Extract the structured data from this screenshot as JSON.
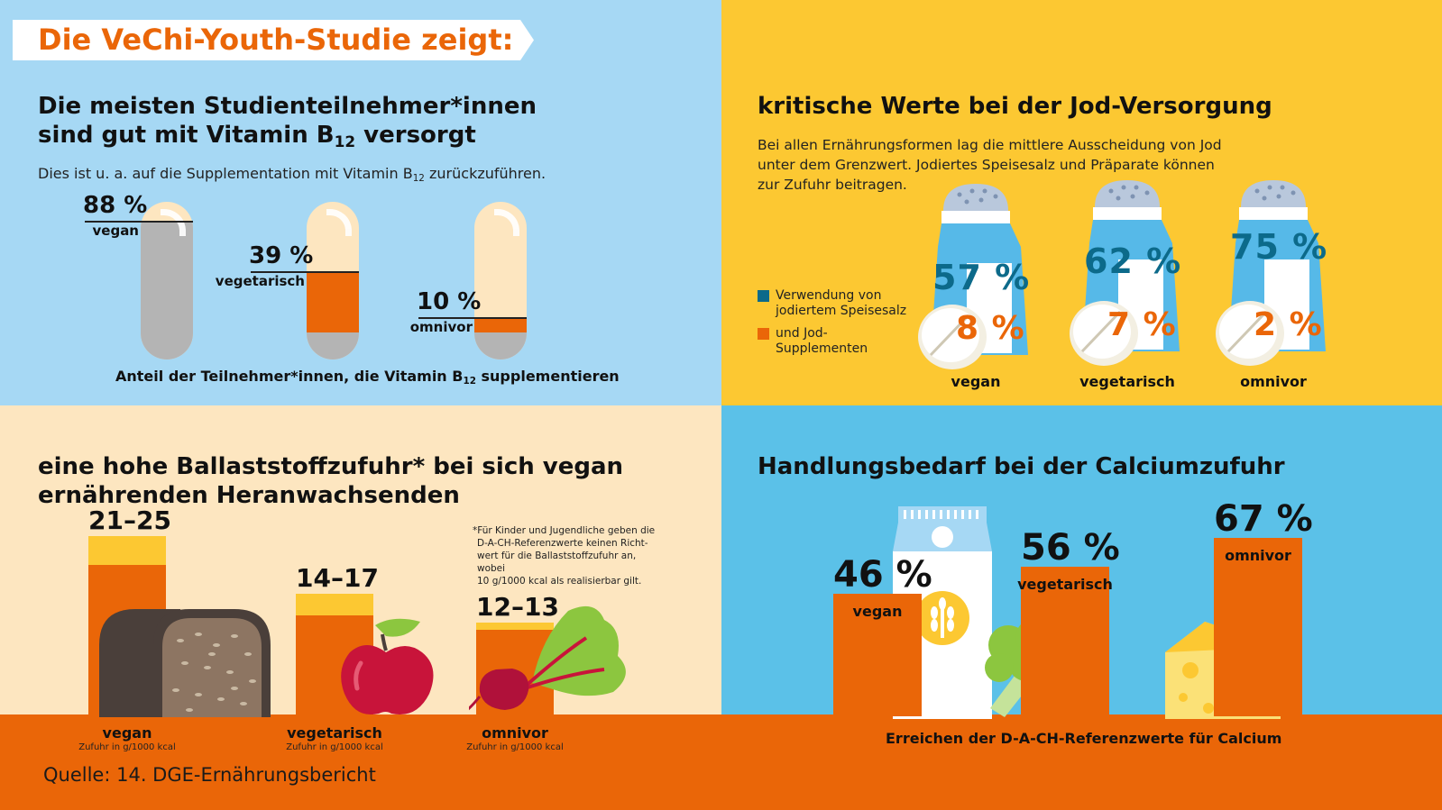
{
  "banner": {
    "title": "Die VeChi-Youth-Studie zeigt:"
  },
  "source": "Quelle: 14. DGE-Ernährungsbericht",
  "b12": {
    "heading_line1": "Die meisten Studienteilnehmer*innen",
    "heading_line2_pre": "sind gut mit Vitamin B",
    "heading_line2_sub": "12",
    "heading_line2_post": " versorgt",
    "subtitle_pre": "Dies ist u. a. auf die Supplementation mit Vitamin B",
    "subtitle_sub": "12",
    "subtitle_post": " zurückzuführen.",
    "caption_pre": "Anteil der Teilnehmer*innen, die Vitamin B",
    "caption_sub": "12",
    "caption_post": " supplementieren"
  },
  "jod": {
    "heading": "kritische Werte bei der Jod-Versorgung",
    "text_line1": "Bei allen Ernährungsformen lag die mittlere Ausscheidung von Jod",
    "text_line2": "unter dem Grenzwert. Jodiertes Speisesalz und Präparate können",
    "text_line3": "zur Zufuhr beitragen.",
    "legend": [
      {
        "line1": "Verwendung von",
        "line2": "jodiertem Speisesalz",
        "color": "#0c6a8a"
      },
      {
        "line1": "und Jod-",
        "line2": "Supplementen",
        "color": "#ea6608"
      }
    ]
  },
  "fiber": {
    "heading_line1": "eine hohe Ballaststoffzufuhr* bei sich vegan",
    "heading_line2": "ernährenden Heranwachsenden",
    "footnote_line1": "*Für Kinder und Jugendliche geben die",
    "footnote_line2": "D-A-CH-Referenzwerte keinen Richt-",
    "footnote_line3": "wert für die Ballaststoffzufuhr an, wobei",
    "footnote_line4": "10 g/1000 kcal als realisierbar gilt."
  },
  "calcium": {
    "heading": "Handlungsbedarf bei der Calciumzufuhr",
    "caption": "Erreichen der D-A-CH-Referenzwerte für Calcium"
  },
  "chart_data": [
    {
      "type": "bar",
      "title": "Anteil der Teilnehmer*innen, die Vitamin B12 supplementieren",
      "categories": [
        "vegan",
        "vegetarisch",
        "omnivor"
      ],
      "values": [
        88,
        39,
        10
      ],
      "labels": [
        "88 %",
        "39 %",
        "10 %"
      ],
      "unit": "%",
      "ylim": [
        0,
        100
      ],
      "colors": {
        "supplemented": "#ea6608",
        "vegan_level": "#b4b4b4",
        "empty": "#fde6c0"
      }
    },
    {
      "type": "bar",
      "title": "kritische Werte bei der Jod-Versorgung",
      "categories": [
        "vegan",
        "vegetarisch",
        "omnivor"
      ],
      "series": [
        {
          "name": "Verwendung von jodiertem Speisesalz",
          "values": [
            57,
            62,
            75
          ],
          "labels": [
            "57 %",
            "62 %",
            "75 %"
          ],
          "color": "#0c6a8a"
        },
        {
          "name": "und Jod-Supplementen",
          "values": [
            8,
            7,
            2
          ],
          "labels": [
            "8 %",
            "7 %",
            "2 %"
          ],
          "color": "#ea6608"
        }
      ],
      "unit": "%"
    },
    {
      "type": "bar",
      "title": "eine hohe Ballaststoffzufuhr* bei sich vegan ernährenden Heranwachsenden",
      "categories": [
        "vegan",
        "vegetarisch",
        "omnivor"
      ],
      "ranges": [
        [
          21,
          25
        ],
        [
          14,
          17
        ],
        [
          12,
          13
        ]
      ],
      "labels": [
        "21–25",
        "14–17",
        "12–13"
      ],
      "unit_label": "Zufuhr in g/1000 kcal",
      "ylim": [
        0,
        25
      ],
      "colors": {
        "range_low": "#ea6608",
        "range_span": "#fcc832"
      }
    },
    {
      "type": "bar",
      "title": "Erreichen der D-A-CH-Referenzwerte für Calcium",
      "categories": [
        "vegan",
        "vegetarisch",
        "omnivor"
      ],
      "values": [
        46,
        56,
        67
      ],
      "labels": [
        "46 %",
        "56 %",
        "67 %"
      ],
      "unit": "%",
      "colors": {
        "bar": "#ea6608"
      }
    }
  ]
}
